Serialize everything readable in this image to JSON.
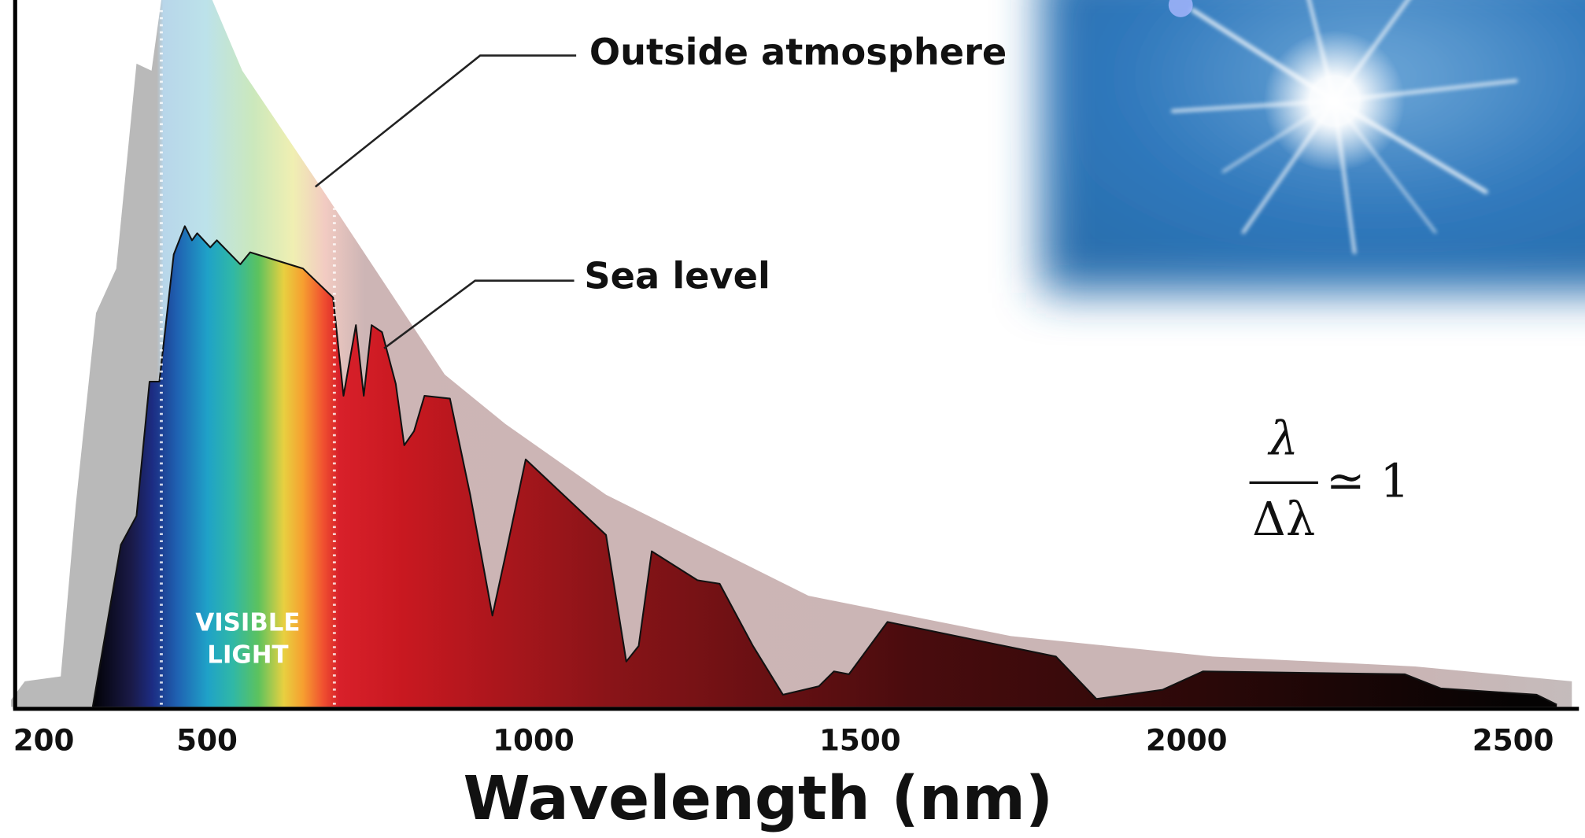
{
  "chart_data": {
    "type": "area",
    "xlabel": "Wavelength (nm)",
    "xlim": [
      200,
      2590
    ],
    "ylim": [
      0,
      100
    ],
    "xticks": [
      200,
      500,
      1000,
      1500,
      2000,
      2500
    ],
    "grid": false,
    "series": [
      {
        "name": "Outside atmosphere",
        "x": [
          200,
          221,
          276,
          299,
          330,
          361,
          392,
          415,
          430,
          508,
          554,
          678,
          864,
          957,
          1111,
          1421,
          1731,
          2040,
          2350,
          2590
        ],
        "values": [
          1,
          3.6,
          4.3,
          28.6,
          55.7,
          62,
          91,
          90,
          100,
          100,
          90,
          73,
          47,
          40,
          30,
          15.7,
          10,
          7.1,
          5.7,
          3.6
        ]
      },
      {
        "name": "Sea level",
        "x": [
          325,
          368,
          392,
          412,
          427,
          449,
          466,
          477,
          485,
          505,
          515,
          551,
          566,
          647,
          693,
          709,
          728,
          740,
          752,
          768,
          789,
          802,
          817,
          833,
          872,
          903,
          937,
          957,
          988,
          1111,
          1142,
          1161,
          1181,
          1251,
          1285,
          1336,
          1382,
          1437,
          1460,
          1483,
          1542,
          1800,
          1862,
          1963,
          2025,
          2334,
          2389,
          2536,
          2567
        ],
        "values": [
          0,
          22.9,
          27,
          46,
          46,
          64,
          68,
          66,
          67,
          65,
          66,
          62.6,
          64.3,
          62,
          57.9,
          44,
          54,
          44,
          54,
          53,
          45.7,
          37,
          39,
          44,
          43.6,
          30,
          12.9,
          21.4,
          35,
          24.3,
          6.4,
          8.6,
          22,
          17.9,
          17.4,
          8.6,
          1.7,
          2.9,
          5,
          4.6,
          12,
          7.1,
          1.1,
          2.4,
          5,
          4.6,
          2.6,
          1.7,
          0.3
        ]
      }
    ],
    "visible_band": {
      "range": [
        430,
        695
      ],
      "label": [
        "VISIBLE",
        "LIGHT"
      ]
    },
    "formula": {
      "numerator": "λ",
      "denominator": "Δλ",
      "relation": "≃ 1"
    }
  }
}
